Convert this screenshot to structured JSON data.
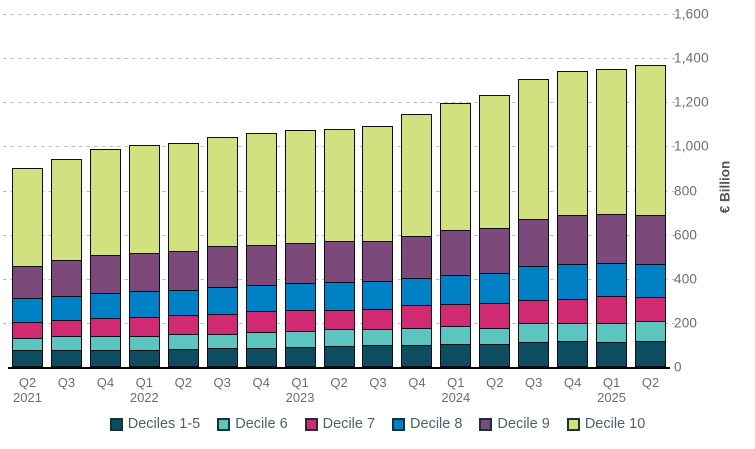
{
  "chart_data": {
    "type": "bar",
    "stacked": true,
    "title": "",
    "ylabel": "€ Billion",
    "ylim": [
      0,
      1600
    ],
    "ytick_interval": 200,
    "grid": "dashed-horizontal",
    "legend_position": "bottom",
    "yticks": [
      {
        "value": 1600,
        "label": "1,600"
      },
      {
        "value": 1400,
        "label": "1,400"
      },
      {
        "value": 1200,
        "label": "1,200"
      },
      {
        "value": 1000,
        "label": "1,000"
      },
      {
        "value": 800,
        "label": "800"
      },
      {
        "value": 600,
        "label": "600"
      },
      {
        "value": 400,
        "label": "400"
      },
      {
        "value": 200,
        "label": "200"
      },
      {
        "value": 0,
        "label": "0"
      }
    ],
    "categories": [
      {
        "q": "Q2",
        "year": "2021"
      },
      {
        "q": "Q3",
        "year": ""
      },
      {
        "q": "Q4",
        "year": ""
      },
      {
        "q": "Q1",
        "year": "2022"
      },
      {
        "q": "Q2",
        "year": ""
      },
      {
        "q": "Q3",
        "year": ""
      },
      {
        "q": "Q4",
        "year": ""
      },
      {
        "q": "Q1",
        "year": "2023"
      },
      {
        "q": "Q2",
        "year": ""
      },
      {
        "q": "Q3",
        "year": ""
      },
      {
        "q": "Q4",
        "year": ""
      },
      {
        "q": "Q1",
        "year": "2024"
      },
      {
        "q": "Q2",
        "year": ""
      },
      {
        "q": "Q3",
        "year": ""
      },
      {
        "q": "Q4",
        "year": ""
      },
      {
        "q": "Q1",
        "year": "2025"
      },
      {
        "q": "Q2",
        "year": ""
      }
    ],
    "series": [
      {
        "name": "Deciles 1-5",
        "color": "#0d4d5f",
        "values": [
          76,
          77,
          77,
          79,
          83,
          86,
          86,
          90,
          94,
          98,
          102,
          106,
          103,
          115,
          120,
          114,
          118
        ]
      },
      {
        "name": "Decile 6",
        "color": "#5cc5c0",
        "values": [
          57,
          63,
          64,
          61,
          65,
          65,
          74,
          73,
          77,
          76,
          75,
          79,
          76,
          85,
          81,
          86,
          91
        ]
      },
      {
        "name": "Decile 7",
        "color": "#d02a72",
        "values": [
          71,
          75,
          79,
          87,
          86,
          90,
          93,
          94,
          89,
          91,
          103,
          99,
          111,
          106,
          106,
          121,
          109
        ]
      },
      {
        "name": "Decile 8",
        "color": "#0080c5",
        "values": [
          109,
          108,
          116,
          118,
          117,
          123,
          121,
          124,
          126,
          125,
          124,
          135,
          136,
          151,
          160,
          151,
          148
        ]
      },
      {
        "name": "Decile 9",
        "color": "#7b4a7b",
        "values": [
          144,
          160,
          170,
          170,
          175,
          185,
          181,
          179,
          186,
          182,
          189,
          201,
          206,
          216,
          220,
          221,
          222
        ]
      },
      {
        "name": "Decile 10",
        "color": "#d3e07f",
        "values": [
          443,
          460,
          483,
          491,
          490,
          492,
          505,
          514,
          509,
          522,
          556,
          577,
          603,
          633,
          654,
          657,
          681
        ]
      }
    ],
    "totals": [
      900,
      943,
      989,
      1006,
      1016,
      1041,
      1060,
      1074,
      1081,
      1094,
      1149,
      1197,
      1235,
      1306,
      1341,
      1350,
      1369
    ]
  }
}
